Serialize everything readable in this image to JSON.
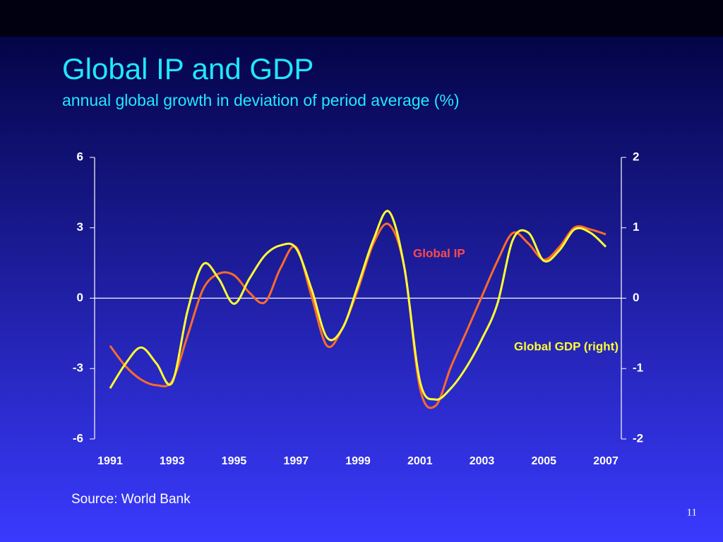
{
  "title": "Global IP and GDP",
  "subtitle": "annual global growth in deviation of period average (%)",
  "source": "Source: World Bank",
  "page_number": "11",
  "chart_data": {
    "type": "line",
    "x": [
      1991,
      1991.5,
      1992,
      1992.5,
      1993,
      1993.5,
      1994,
      1994.5,
      1995,
      1995.5,
      1996,
      1996.5,
      1997,
      1997.5,
      1998,
      1998.5,
      1999,
      1999.5,
      2000,
      2000.5,
      2001,
      2001.5,
      2002,
      2002.5,
      2003,
      2003.5,
      2004,
      2004.5,
      2005,
      2005.5,
      2006,
      2006.5,
      2007
    ],
    "xlim": [
      1990.5,
      2007.5
    ],
    "xticks": [
      1991,
      1993,
      1995,
      1997,
      1999,
      2001,
      2003,
      2005,
      2007
    ],
    "ylim": [
      -6,
      6
    ],
    "yticks": [
      -6,
      -3,
      0,
      3,
      6
    ],
    "y2lim": [
      -2,
      2
    ],
    "y2ticks": [
      -2,
      -1,
      0,
      1,
      2
    ],
    "series": [
      {
        "name": "Global IP",
        "color": "#ff6a2a",
        "label_color": "#ff4a4a",
        "values": [
          -2.03,
          -2.9,
          -3.47,
          -3.71,
          -3.53,
          -1.6,
          0.38,
          1.04,
          0.98,
          0.23,
          -0.17,
          1.28,
          2.18,
          0.08,
          -2.03,
          -1.28,
          0.38,
          2.33,
          3.14,
          1.28,
          -3.83,
          -4.59,
          -2.93,
          -1.43,
          0.08,
          1.58,
          2.78,
          2.33,
          1.64,
          2.18,
          3.02,
          2.93,
          2.72
        ]
      },
      {
        "name": "Global GDP (right)",
        "color": "#ffff33",
        "label_color": "#ffff33",
        "axis": "y2",
        "values": [
          -1.28,
          -0.93,
          -0.7,
          -0.93,
          -1.2,
          -0.18,
          0.48,
          0.28,
          -0.08,
          0.28,
          0.61,
          0.75,
          0.71,
          0.13,
          -0.56,
          -0.43,
          0.18,
          0.83,
          1.23,
          0.43,
          -1.18,
          -1.44,
          -1.28,
          -0.98,
          -0.58,
          -0.08,
          0.83,
          0.93,
          0.53,
          0.68,
          0.98,
          0.93,
          0.73
        ]
      }
    ]
  }
}
